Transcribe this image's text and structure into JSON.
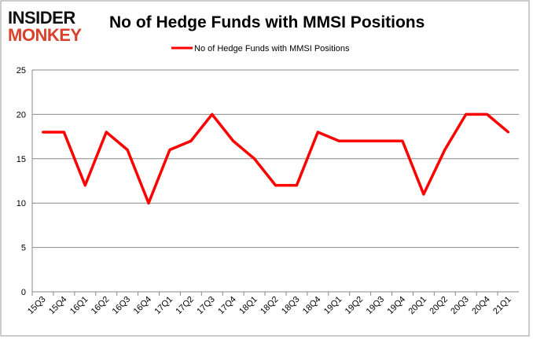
{
  "logo": {
    "line1": "INSIDER",
    "line2": "MONKEY"
  },
  "chart_data": {
    "type": "line",
    "title": "No of Hedge Funds with MMSI Positions",
    "legend_position": "top",
    "grid": true,
    "xlabel": "",
    "ylabel": "",
    "ylim": [
      0,
      25
    ],
    "yticks": [
      "0",
      "5",
      "10",
      "15",
      "20",
      "25"
    ],
    "categories": [
      "15Q3",
      "15Q4",
      "16Q1",
      "16Q2",
      "16Q3",
      "16Q4",
      "17Q1",
      "17Q2",
      "17Q3",
      "17Q4",
      "18Q1",
      "18Q2",
      "18Q3",
      "18Q4",
      "19Q1",
      "19Q2",
      "19Q3",
      "19Q4",
      "20Q1",
      "20Q2",
      "20Q3",
      "20Q4",
      "21Q1"
    ],
    "series": [
      {
        "name": "No of Hedge Funds with MMSI Positions",
        "color": "#ff0000",
        "values": [
          18,
          18,
          12,
          18,
          16,
          10,
          16,
          17,
          20,
          17,
          15,
          12,
          12,
          18,
          17,
          17,
          17,
          17,
          11,
          16,
          20,
          20,
          18
        ]
      }
    ]
  }
}
